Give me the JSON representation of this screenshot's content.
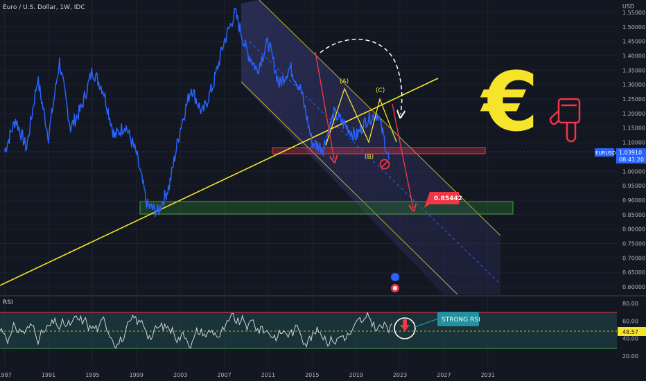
{
  "header": {
    "title": "Euro / U.S. Dollar, 1W, IDC"
  },
  "colors": {
    "background": "#131722",
    "price_line": "#2962ff",
    "trendline": "#f5e42a",
    "channel": "#f5e42a",
    "support_zone": "#2e7d32",
    "resistance_zone": "#f23645",
    "rsi_line": "#d1d4dc",
    "rsi_band": "#1f4a4a",
    "callout": "#22909f"
  },
  "icons": {
    "euro": "euro-sign-icon",
    "pointer": "hand-pointing-down-icon",
    "stop": "prohibited-icon"
  },
  "chart_data": [
    {
      "type": "line",
      "title": "Euro / U.S. Dollar, 1W, IDC",
      "ylabel": "USD",
      "ylim": [
        0.55,
        1.62
      ],
      "y_ticks": [
        "0.60000",
        "0.65000",
        "0.70000",
        "0.75000",
        "0.80000",
        "0.85000",
        "0.90000",
        "0.95000",
        "1.00000",
        "1.05000",
        "1.10000",
        "1.15000",
        "1.20000",
        "1.25000",
        "1.30000",
        "1.35000",
        "1.40000",
        "1.45000",
        "1.50000",
        "1.55000"
      ],
      "x_ticks": [
        "1987",
        "1991",
        "1995",
        "1999",
        "2003",
        "2007",
        "2011",
        "2015",
        "2019",
        "2023",
        "2027",
        "2031"
      ],
      "grid": true,
      "series": [
        {
          "name": "EURUSD",
          "x": [
            1987,
            1988,
            1989,
            1990,
            1991,
            1992,
            1993,
            1994,
            1995,
            1996,
            1997,
            1998,
            1999,
            2000,
            2001,
            2002,
            2003,
            2004,
            2005,
            2006,
            2007,
            2008,
            2009,
            2010,
            2011,
            2012,
            2013,
            2014,
            2015,
            2016,
            2017,
            2018,
            2019,
            2020,
            2021,
            2022
          ],
          "values": [
            1.07,
            1.18,
            1.08,
            1.32,
            1.12,
            1.38,
            1.15,
            1.22,
            1.35,
            1.28,
            1.12,
            1.16,
            1.06,
            0.88,
            0.86,
            0.95,
            1.15,
            1.29,
            1.2,
            1.3,
            1.45,
            1.55,
            1.42,
            1.35,
            1.45,
            1.3,
            1.36,
            1.28,
            1.1,
            1.08,
            1.2,
            1.16,
            1.12,
            1.18,
            1.2,
            1.04
          ]
        }
      ],
      "annotations": {
        "wave_labels": [
          "(A)",
          "(B)",
          "(C)"
        ],
        "target_label": "0.85442",
        "price_tag": {
          "symbol": "EURUSD",
          "price": "1.03910",
          "countdown": "08:41:20"
        },
        "target_value": 0.85442,
        "current_value": 1.0391,
        "support_zone": [
          0.835,
          0.88
        ],
        "resistance_zone": [
          1.035,
          1.05
        ]
      }
    },
    {
      "type": "line",
      "title": "RSI",
      "ylim": [
        15,
        85
      ],
      "y_ticks": [
        "80.00",
        "60.00",
        "40.00",
        "20.00"
      ],
      "current_value_label": "48.57",
      "current_value": 48.57,
      "bands": [
        70,
        30
      ],
      "callout": "STRONG RSI"
    }
  ]
}
